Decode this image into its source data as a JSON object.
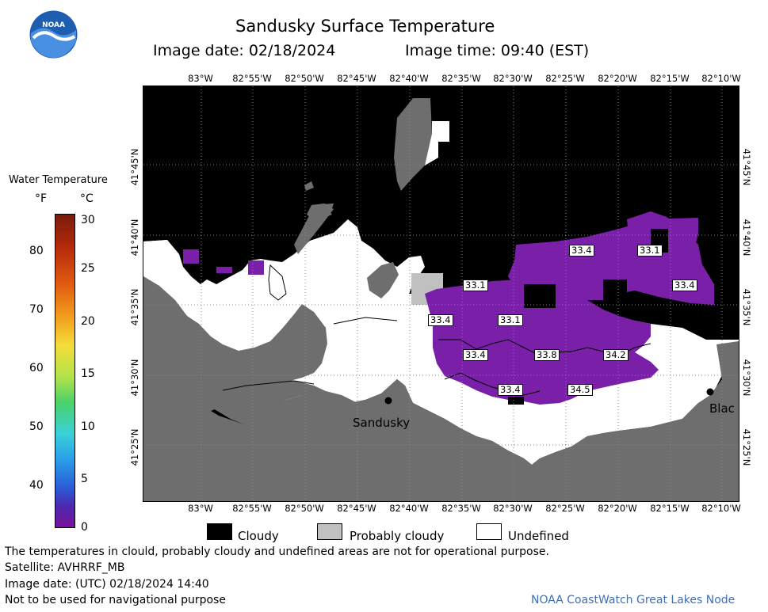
{
  "header": {
    "title": "Sandusky Surface Temperature",
    "image_date": "Image date: 02/18/2024",
    "image_time": "Image time: 09:40 (EST)"
  },
  "logo": {
    "text": "NOAA"
  },
  "longitudes": [
    "83°W",
    "82°55'W",
    "82°50'W",
    "82°45'W",
    "82°40'W",
    "82°35'W",
    "82°30'W",
    "82°25'W",
    "82°20'W",
    "82°15'W",
    "82°10'W"
  ],
  "latitudes": [
    "41°45'N",
    "41°40'N",
    "41°35'N",
    "41°30'N",
    "41°25'N"
  ],
  "legend": {
    "title": "Water Temperature",
    "unit_f": "°F",
    "unit_c": "°C",
    "f_ticks": [
      "80",
      "70",
      "60",
      "50",
      "40"
    ],
    "c_ticks": [
      "30",
      "25",
      "20",
      "15",
      "10",
      "5",
      "0"
    ]
  },
  "temperature_labels": [
    "33.4",
    "33.1",
    "33.1",
    "33.4",
    "33.4",
    "33.1",
    "33.4",
    "33.8",
    "34.2",
    "33.4",
    "34.5"
  ],
  "places": {
    "sandusky": "Sandusky",
    "blac": "Blac"
  },
  "key": {
    "cloudy": "Cloudy",
    "probably_cloudy": "Probably cloudy",
    "undefined": "Undefined"
  },
  "footer": {
    "disclaimer": "The temperatures in clould, probably cloudy and undefined areas are not for operational purpose.",
    "satellite": "Satellite: AVHRRF_MB",
    "utc_date": "Image date: (UTC) 02/18/2024  14:40",
    "nav_warning": "Not to be used for navigational purpose",
    "credit": "NOAA CoastWatch Great Lakes Node"
  },
  "colors": {
    "cloud": "#000000",
    "probably_cloudy": "#c0c0c0",
    "undefined": "#ffffff",
    "land": "#6e6e6e",
    "water_33": "#7a20a8"
  }
}
